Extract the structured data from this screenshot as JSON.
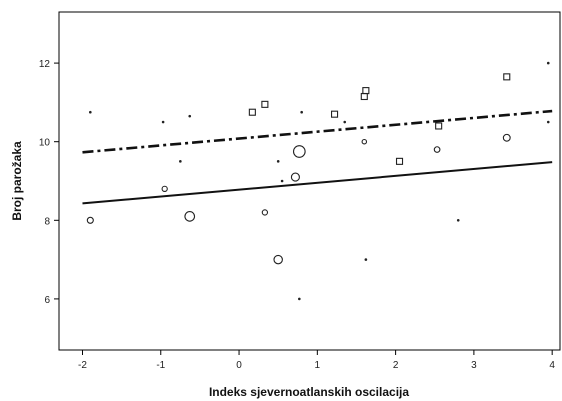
{
  "chart_data": {
    "type": "scatter",
    "xlabel": "Indeks sjevernoatlanskih oscilacija",
    "ylabel": "Broj parožaka",
    "xlim": [
      -2.3,
      4.1
    ],
    "ylim": [
      4.7,
      13.3
    ],
    "x_ticks": [
      -2,
      -1,
      0,
      1,
      2,
      3,
      4
    ],
    "y_ticks": [
      6,
      8,
      10,
      12
    ],
    "grid": false,
    "series": [
      {
        "marker": "circle",
        "points": [
          {
            "x": -1.9,
            "y": 8.0,
            "size": 1.5
          },
          {
            "x": -0.95,
            "y": 8.8,
            "size": 1.3
          },
          {
            "x": -0.63,
            "y": 8.1,
            "size": 2.4
          },
          {
            "x": 0.33,
            "y": 8.2,
            "size": 1.3
          },
          {
            "x": 0.5,
            "y": 7.0,
            "size": 2.1
          },
          {
            "x": 0.72,
            "y": 9.1,
            "size": 2.0
          },
          {
            "x": 0.77,
            "y": 9.75,
            "size": 2.9
          },
          {
            "x": 1.6,
            "y": 10.0,
            "size": 1.1
          },
          {
            "x": 2.53,
            "y": 9.8,
            "size": 1.4
          },
          {
            "x": 3.42,
            "y": 10.1,
            "size": 1.7
          }
        ]
      },
      {
        "marker": "dot",
        "points": [
          {
            "x": -1.9,
            "y": 10.75
          },
          {
            "x": -0.97,
            "y": 10.5
          },
          {
            "x": -0.75,
            "y": 9.5
          },
          {
            "x": -0.63,
            "y": 10.65
          },
          {
            "x": 0.5,
            "y": 9.5
          },
          {
            "x": 0.55,
            "y": 9.0
          },
          {
            "x": 0.77,
            "y": 6.0
          },
          {
            "x": 0.8,
            "y": 10.75
          },
          {
            "x": 1.35,
            "y": 10.5
          },
          {
            "x": 1.62,
            "y": 7.0
          },
          {
            "x": 2.8,
            "y": 8.0
          },
          {
            "x": 3.95,
            "y": 12.0
          },
          {
            "x": 3.95,
            "y": 10.5
          }
        ]
      },
      {
        "marker": "square",
        "points": [
          {
            "x": 0.17,
            "y": 10.75
          },
          {
            "x": 0.33,
            "y": 10.95
          },
          {
            "x": 1.22,
            "y": 10.7
          },
          {
            "x": 1.6,
            "y": 11.15
          },
          {
            "x": 1.62,
            "y": 11.3
          },
          {
            "x": 2.05,
            "y": 9.5
          },
          {
            "x": 2.55,
            "y": 10.4
          },
          {
            "x": 3.42,
            "y": 11.65
          }
        ]
      }
    ],
    "lines": [
      {
        "style": "solid",
        "x": [
          -2.0,
          4.0
        ],
        "y": [
          8.43,
          9.48
        ]
      },
      {
        "style": "dash-dot",
        "x": [
          -2.0,
          4.0
        ],
        "y": [
          9.73,
          10.78
        ]
      }
    ]
  }
}
